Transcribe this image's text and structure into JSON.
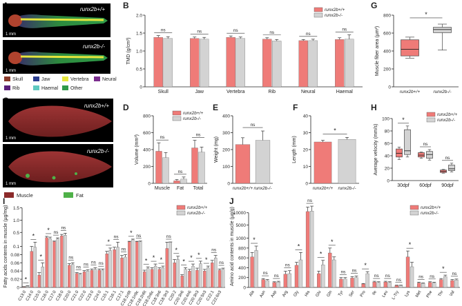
{
  "colors": {
    "wt": "#ef7b78",
    "ko": "#d3d3d3",
    "muscle": "#8b2a2a",
    "fat": "#4fb148",
    "skull": "#8b3a2a",
    "jaw": "#2c3e90",
    "vertebra": "#e6e63c",
    "neural": "#7b2d8e",
    "rib": "#5a1f7a",
    "haemal": "#5fc9c0",
    "other": "#2f9a48"
  },
  "legend": {
    "wt": "runx2b+/+",
    "ko": "runx2b-/-"
  },
  "panels": {
    "A": {
      "letter": "A",
      "genotype_top": "runx2b+/+",
      "genotype_bottom": "runx2b-/-",
      "scale": "1 mm",
      "tissue_legend": [
        "Skull",
        "Jaw",
        "Vertebra",
        "Neural",
        "Rib",
        "Haemal",
        "Other"
      ]
    },
    "C": {
      "letter": "C",
      "genotype_top": "runx2b+/+",
      "genotype_bottom": "runx2b-/-",
      "scale": "1 mm",
      "tissue_legend": [
        "Muscle",
        "Fat"
      ]
    }
  },
  "chart_data": [
    {
      "panel": "B",
      "type": "bar",
      "ylabel": "TMD (g/cm³)",
      "ylim": [
        0,
        2.0
      ],
      "yticks": [
        "0",
        "0.5",
        "1.0",
        "1.5",
        "2.0"
      ],
      "categories": [
        "Skull",
        "Jaw",
        "Vertebra",
        "Rib",
        "Neural",
        "Haemal"
      ],
      "series": [
        {
          "name": "runx2b+/+",
          "values": [
            1.38,
            1.35,
            1.38,
            1.33,
            1.29,
            1.32
          ],
          "errors": [
            0.05,
            0.04,
            0.04,
            0.04,
            0.03,
            0.05
          ]
        },
        {
          "name": "runx2b-/-",
          "values": [
            1.35,
            1.33,
            1.35,
            1.28,
            1.29,
            1.33
          ],
          "errors": [
            0.05,
            0.05,
            0.04,
            0.04,
            0.04,
            0.12
          ]
        }
      ],
      "significance": [
        "ns",
        "ns",
        "ns",
        "ns",
        "ns",
        "ns"
      ]
    },
    {
      "panel": "D",
      "type": "bar",
      "ylabel": "Volume (mm³)",
      "ylim": [
        0,
        800
      ],
      "yticks": [
        "0",
        "200",
        "400",
        "600",
        "800"
      ],
      "categories": [
        "Muscle",
        "Fat",
        "Total"
      ],
      "series": [
        {
          "name": "runx2b+/+",
          "values": [
            380,
            30,
            420
          ],
          "errors": [
            100,
            15,
            90
          ]
        },
        {
          "name": "runx2b-/-",
          "values": [
            305,
            50,
            370
          ],
          "errors": [
            60,
            25,
            60
          ]
        }
      ],
      "significance": [
        "ns",
        "ns",
        "ns"
      ]
    },
    {
      "panel": "E",
      "type": "bar",
      "ylabel": "Weight (mg)",
      "ylim": [
        0,
        400
      ],
      "yticks": [
        "0",
        "100",
        "200",
        "300",
        "400"
      ],
      "categories": [
        "runx2b+/+",
        "runx2b-/-"
      ],
      "values": [
        230,
        255
      ],
      "errors": [
        40,
        55
      ],
      "significance": [
        "ns"
      ]
    },
    {
      "panel": "F",
      "type": "bar",
      "ylabel": "Length (mm)",
      "ylim": [
        0,
        40
      ],
      "yticks": [
        "0",
        "10",
        "20",
        "30",
        "40"
      ],
      "categories": [
        "runx2b+/+",
        "runx2b-/-"
      ],
      "values": [
        24.5,
        26.0
      ],
      "errors": [
        1.0,
        1.2
      ],
      "significance": [
        "*"
      ]
    },
    {
      "panel": "G",
      "type": "box",
      "ylabel": "Muscle fiber area (µm²)",
      "ylim": [
        0,
        800
      ],
      "yticks": [
        "0",
        "200",
        "400",
        "600",
        "800"
      ],
      "categories": [
        "runx2b+/+",
        "runx2b-/-"
      ],
      "boxes": [
        {
          "min": 320,
          "q1": 345,
          "median": 420,
          "q3": 525,
          "max": 555
        },
        {
          "min": 410,
          "q1": 605,
          "median": 640,
          "q3": 665,
          "max": 700
        }
      ],
      "significance": [
        "*"
      ]
    },
    {
      "panel": "H",
      "type": "box",
      "ylabel": "Average velocity (mm/s)",
      "ylim": [
        0,
        100
      ],
      "yticks": [
        "0",
        "20",
        "40",
        "60",
        "80",
        "100"
      ],
      "categories": [
        "30dpf",
        "60dpf",
        "90dpf"
      ],
      "series": [
        {
          "name": "runx2b+/+",
          "boxes": [
            {
              "min": 34,
              "q1": 38,
              "median": 44,
              "q3": 51,
              "max": 54
            },
            {
              "min": 36,
              "q1": 38,
              "median": 41,
              "q3": 45,
              "max": 46
            },
            {
              "min": 12,
              "q1": 13,
              "median": 15,
              "q3": 17,
              "max": 18
            }
          ]
        },
        {
          "name": "runx2b-/-",
          "boxes": [
            {
              "min": 38,
              "q1": 42,
              "median": 48,
              "q3": 82,
              "max": 88
            },
            {
              "min": 33,
              "q1": 36,
              "median": 42,
              "q3": 47,
              "max": 50
            },
            {
              "min": 14,
              "q1": 16,
              "median": 19,
              "q3": 25,
              "max": 28
            }
          ]
        }
      ],
      "significance": [
        "*",
        "ns",
        "ns"
      ]
    },
    {
      "panel": "I",
      "type": "bar",
      "ylabel": "Fatty acids contents in muscle (µg/mg)",
      "ylim": [
        0,
        1.6
      ],
      "yticks": [
        "0",
        "0.02",
        "0.04",
        "0.06",
        "0.08",
        "0.1",
        "0.5",
        "1.0",
        "1.5"
      ],
      "categories": [
        "C13:0",
        "C14:0",
        "C15:0",
        "C16:0",
        "C17:0",
        "C18:0",
        "C20:0",
        "C21:0",
        "C22:0",
        "C23:0",
        "C24:0",
        "C15:1",
        "C16:1",
        "C17:1",
        "C18:1n9t",
        "C18:1n9c",
        "C18:2n6t",
        "C18:2n6c",
        "C18:3n6",
        "C18:3n3",
        "C20:2",
        "C20:3n6",
        "C20:4n6",
        "C20:3n3",
        "C20:5n3",
        "C22:1",
        "C22:6n3"
      ],
      "series": [
        {
          "name": "runx2b+/+",
          "values": [
            0.001,
            0.088,
            0.03,
            0.29,
            0.13,
            0.36,
            0.054,
            0.034,
            0.038,
            0.042,
            0.042,
            0.082,
            0.092,
            0.072,
            0.12,
            0.12,
            0.038,
            0.044,
            0.044,
            0.095,
            0.06,
            0.028,
            0.04,
            0.042,
            0.04,
            0.06,
            0.042
          ],
          "errors": [
            0.001,
            0.012,
            0.006,
            0.05,
            0.02,
            0.06,
            0.004,
            0.002,
            0.003,
            0.003,
            0.003,
            0.006,
            0.006,
            0.006,
            0.02,
            0.02,
            0.004,
            0.004,
            0.004,
            0.01,
            0.008,
            0.003,
            0.004,
            0.005,
            0.004,
            0.006,
            0.003
          ]
        },
        {
          "name": "runx2b-/-",
          "values": [
            0.003,
            0.098,
            0.05,
            0.25,
            0.24,
            0.39,
            0.056,
            0.032,
            0.04,
            0.044,
            0.042,
            0.09,
            0.098,
            0.074,
            0.2,
            0.12,
            0.046,
            0.052,
            0.048,
            0.105,
            0.068,
            0.044,
            0.052,
            0.058,
            0.048,
            0.072,
            0.044
          ],
          "errors": [
            0.001,
            0.008,
            0.01,
            0.06,
            0.04,
            0.08,
            0.004,
            0.002,
            0.003,
            0.004,
            0.003,
            0.006,
            0.006,
            0.006,
            0.03,
            0.03,
            0.004,
            0.005,
            0.004,
            0.01,
            0.008,
            0.004,
            0.005,
            0.006,
            0.004,
            0.006,
            0.003
          ]
        }
      ],
      "significance": [
        "*",
        "*",
        "*",
        "*",
        "ns",
        "ns",
        "ns",
        "ns",
        "ns",
        "ns",
        "ns",
        "*",
        "ns",
        "ns",
        "*",
        "ns",
        "*",
        "*",
        "*",
        "ns",
        "*",
        "*",
        "*",
        "*",
        "*",
        "ns",
        "ns"
      ]
    },
    {
      "panel": "J",
      "type": "bar",
      "ylabel": "Amino acid contents in muscle (µg/g)",
      "ylim": [
        0,
        13000
      ],
      "yticks": [
        "0",
        "200",
        "400",
        "600",
        "800",
        "1000",
        "5000",
        "10000"
      ],
      "categories": [
        "Ala",
        "Asn",
        "Asp",
        "Arg",
        "Gly",
        "His",
        "Glu",
        "Gln",
        "Tyr",
        "Ser",
        "Pro",
        "Ile",
        "Leu",
        "L-Try",
        "Lys",
        "Met",
        "Phe",
        "Thr",
        "Val"
      ],
      "series": [
        {
          "name": "runx2b+/+",
          "values": [
            620,
            160,
            100,
            270,
            450,
            10500,
            280,
            700,
            170,
            190,
            70,
            110,
            110,
            40,
            620,
            90,
            100,
            160,
            140
          ],
          "errors": [
            90,
            20,
            15,
            60,
            60,
            1800,
            50,
            100,
            30,
            30,
            10,
            15,
            15,
            5,
            120,
            15,
            15,
            20,
            20
          ]
        },
        {
          "name": "runx2b-/-",
          "values": [
            750,
            140,
            110,
            280,
            560,
            10700,
            460,
            560,
            170,
            200,
            280,
            100,
            100,
            40,
            420,
            80,
            90,
            220,
            150
          ],
          "errors": [
            90,
            20,
            15,
            60,
            150,
            2000,
            90,
            60,
            30,
            30,
            40,
            15,
            15,
            5,
            90,
            10,
            15,
            30,
            20
          ]
        }
      ],
      "significance": [
        "*",
        "ns",
        "ns",
        "ns",
        "*",
        "ns",
        "*",
        "*",
        "ns",
        "ns",
        "*",
        "ns",
        "ns",
        "ns",
        "*",
        "ns",
        "ns",
        "*",
        "ns"
      ]
    }
  ]
}
